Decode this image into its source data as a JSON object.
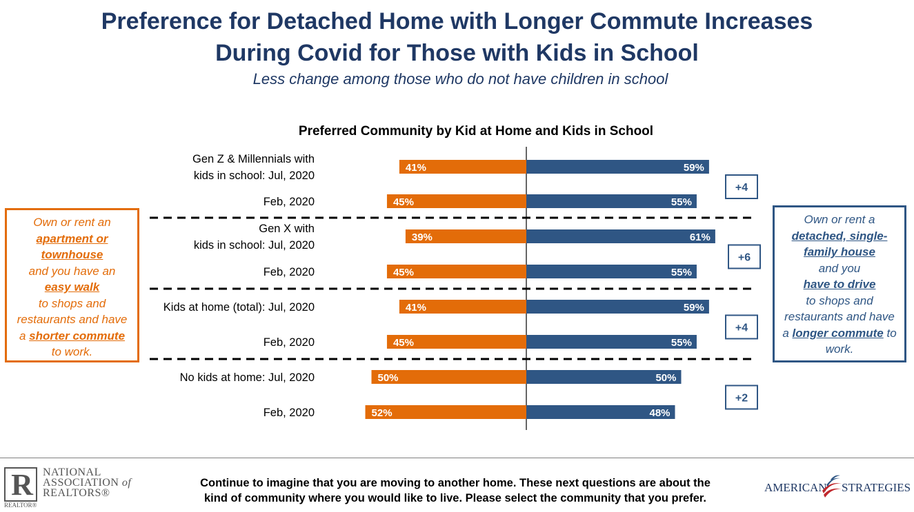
{
  "title": {
    "line1": "Preference for Detached Home with Longer Commute Increases",
    "line2": "During Covid for Those with Kids in School"
  },
  "subtitle": "Less change among those who do not have children in school",
  "chart_data": {
    "type": "bar",
    "title": "Preferred Community by Kid at Home and Kids in School",
    "orientation": "horizontal-diverging",
    "groups": [
      {
        "rows": [
          {
            "label_lines": [
              "Gen Z & Millennials with",
              "kids in school: Jul, 2020"
            ],
            "apartment": 41,
            "detached": 59
          },
          {
            "label_lines": [
              "Feb, 2020"
            ],
            "apartment": 45,
            "detached": 55
          }
        ],
        "change": "+4"
      },
      {
        "rows": [
          {
            "label_lines": [
              "Gen X with",
              "kids in school: Jul, 2020"
            ],
            "apartment": 39,
            "detached": 61
          },
          {
            "label_lines": [
              "Feb, 2020"
            ],
            "apartment": 45,
            "detached": 55
          }
        ],
        "change": "+6"
      },
      {
        "rows": [
          {
            "label_lines": [
              "Kids at home (total): Jul, 2020"
            ],
            "apartment": 41,
            "detached": 59
          },
          {
            "label_lines": [
              "Feb, 2020"
            ],
            "apartment": 45,
            "detached": 55
          }
        ],
        "change": "+4"
      },
      {
        "rows": [
          {
            "label_lines": [
              "No kids at home: Jul, 2020"
            ],
            "apartment": 50,
            "detached": 50
          },
          {
            "label_lines": [
              "Feb, 2020"
            ],
            "apartment": 52,
            "detached": 48
          }
        ],
        "change": "+2"
      }
    ],
    "colors": {
      "apartment": "#e36c09",
      "detached": "#2f5684"
    },
    "value_suffix": "%"
  },
  "callouts": {
    "left": {
      "l1": "Own or rent an",
      "l2": "apartment or",
      "l3": "townhouse",
      "l4": "and you have an",
      "l5": "easy walk",
      "l6": "to shops and",
      "l7": "restaurants and have",
      "l8a": "a ",
      "l8b": "shorter commute",
      "l9": "to work."
    },
    "right": {
      "l1": "Own or rent a",
      "l2": "detached, single-",
      "l3": "family house",
      "l4": "and you",
      "l5": "have to drive",
      "l6": "to shops and",
      "l7": "restaurants and have",
      "l8a": "a ",
      "l8b": "longer commute",
      "l8c": " to",
      "l9": "work."
    }
  },
  "footer": {
    "question_line1": "Continue to imagine that you are moving to another home. These next questions are about the",
    "question_line2": "kind of community where you would like to live. Please select the community that you prefer.",
    "nar_line1": "NATIONAL",
    "nar_line2a": "ASSOCIATION ",
    "nar_line2b": "of",
    "nar_line3": "REALTORS®",
    "nar_mark": "R",
    "nar_small": "REALTOR®",
    "as_left": "AMERICAN",
    "as_right": "STRATEGIES"
  }
}
